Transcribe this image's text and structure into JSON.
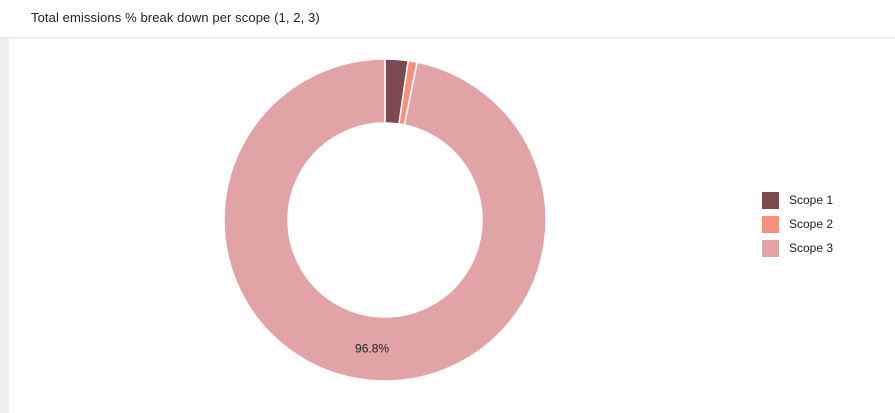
{
  "chart_data": {
    "type": "donut",
    "title": "Total emissions % break down per scope (1, 2, 3)",
    "categories": [
      "Scope 1",
      "Scope 2",
      "Scope 3"
    ],
    "values": [
      2.3,
      0.9,
      96.8
    ],
    "unit": "%",
    "data_labels": [
      "",
      "",
      "96.8%"
    ],
    "colors": [
      "#7d4a50",
      "#f7907c",
      "#e2a3a7"
    ],
    "legend_position": "right"
  }
}
